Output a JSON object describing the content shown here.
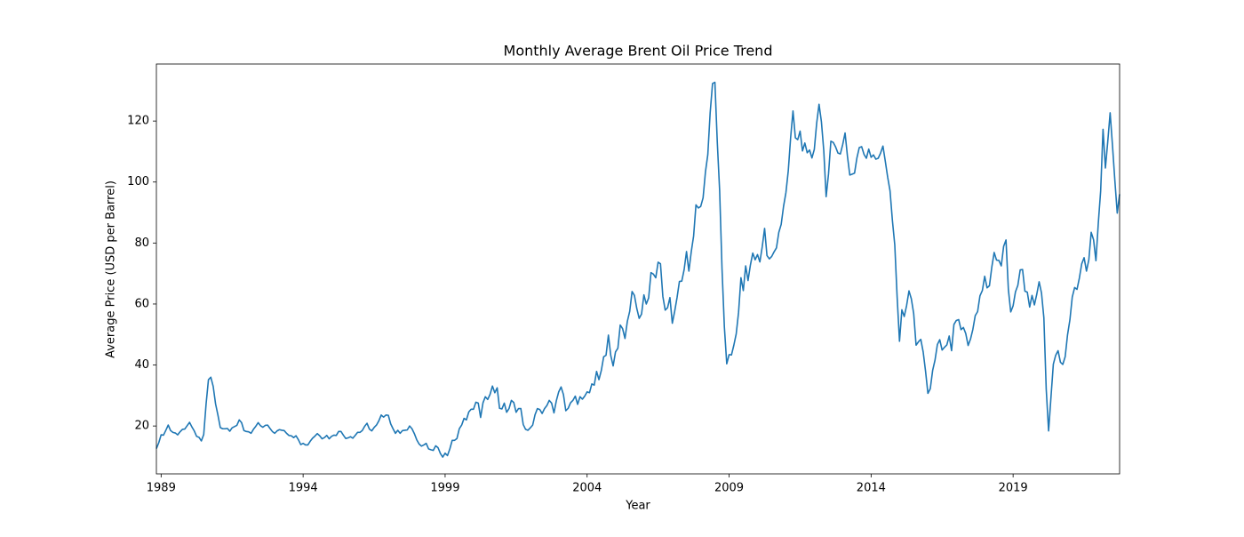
{
  "chart_data": {
    "type": "line",
    "title": "Monthly Average Brent Oil Price Trend",
    "x_label": "Year",
    "y_label": "Average Price (USD per Barrel)",
    "x": [
      "1988-11",
      "1988-12",
      "1989-01",
      "1989-02",
      "1989-03",
      "1989-04",
      "1989-05",
      "1989-06",
      "1989-07",
      "1989-08",
      "1989-09",
      "1989-10",
      "1989-11",
      "1989-12",
      "1990-01",
      "1990-02",
      "1990-03",
      "1990-04",
      "1990-05",
      "1990-06",
      "1990-07",
      "1990-08",
      "1990-09",
      "1990-10",
      "1990-11",
      "1990-12",
      "1991-01",
      "1991-02",
      "1991-03",
      "1991-04",
      "1991-05",
      "1991-06",
      "1991-07",
      "1991-08",
      "1991-09",
      "1991-10",
      "1991-11",
      "1991-12",
      "1992-01",
      "1992-02",
      "1992-03",
      "1992-04",
      "1992-05",
      "1992-06",
      "1992-07",
      "1992-08",
      "1992-09",
      "1992-10",
      "1992-11",
      "1992-12",
      "1993-01",
      "1993-02",
      "1993-03",
      "1993-04",
      "1993-05",
      "1993-06",
      "1993-07",
      "1993-08",
      "1993-09",
      "1993-10",
      "1993-11",
      "1993-12",
      "1994-01",
      "1994-02",
      "1994-03",
      "1994-04",
      "1994-05",
      "1994-06",
      "1994-07",
      "1994-08",
      "1994-09",
      "1994-10",
      "1994-11",
      "1994-12",
      "1995-01",
      "1995-02",
      "1995-03",
      "1995-04",
      "1995-05",
      "1995-06",
      "1995-07",
      "1995-08",
      "1995-09",
      "1995-10",
      "1995-11",
      "1995-12",
      "1996-01",
      "1996-02",
      "1996-03",
      "1996-04",
      "1996-05",
      "1996-06",
      "1996-07",
      "1996-08",
      "1996-09",
      "1996-10",
      "1996-11",
      "1996-12",
      "1997-01",
      "1997-02",
      "1997-03",
      "1997-04",
      "1997-05",
      "1997-06",
      "1997-07",
      "1997-08",
      "1997-09",
      "1997-10",
      "1997-11",
      "1997-12",
      "1998-01",
      "1998-02",
      "1998-03",
      "1998-04",
      "1998-05",
      "1998-06",
      "1998-07",
      "1998-08",
      "1998-09",
      "1998-10",
      "1998-11",
      "1998-12",
      "1999-01",
      "1999-02",
      "1999-03",
      "1999-04",
      "1999-05",
      "1999-06",
      "1999-07",
      "1999-08",
      "1999-09",
      "1999-10",
      "1999-11",
      "1999-12",
      "2000-01",
      "2000-02",
      "2000-03",
      "2000-04",
      "2000-05",
      "2000-06",
      "2000-07",
      "2000-08",
      "2000-09",
      "2000-10",
      "2000-11",
      "2000-12",
      "2001-01",
      "2001-02",
      "2001-03",
      "2001-04",
      "2001-05",
      "2001-06",
      "2001-07",
      "2001-08",
      "2001-09",
      "2001-10",
      "2001-11",
      "2001-12",
      "2002-01",
      "2002-02",
      "2002-03",
      "2002-04",
      "2002-05",
      "2002-06",
      "2002-07",
      "2002-08",
      "2002-09",
      "2002-10",
      "2002-11",
      "2002-12",
      "2003-01",
      "2003-02",
      "2003-03",
      "2003-04",
      "2003-05",
      "2003-06",
      "2003-07",
      "2003-08",
      "2003-09",
      "2003-10",
      "2003-11",
      "2003-12",
      "2004-01",
      "2004-02",
      "2004-03",
      "2004-04",
      "2004-05",
      "2004-06",
      "2004-07",
      "2004-08",
      "2004-09",
      "2004-10",
      "2004-11",
      "2004-12",
      "2005-01",
      "2005-02",
      "2005-03",
      "2005-04",
      "2005-05",
      "2005-06",
      "2005-07",
      "2005-08",
      "2005-09",
      "2005-10",
      "2005-11",
      "2005-12",
      "2006-01",
      "2006-02",
      "2006-03",
      "2006-04",
      "2006-05",
      "2006-06",
      "2006-07",
      "2006-08",
      "2006-09",
      "2006-10",
      "2006-11",
      "2006-12",
      "2007-01",
      "2007-02",
      "2007-03",
      "2007-04",
      "2007-05",
      "2007-06",
      "2007-07",
      "2007-08",
      "2007-09",
      "2007-10",
      "2007-11",
      "2007-12",
      "2008-01",
      "2008-02",
      "2008-03",
      "2008-04",
      "2008-05",
      "2008-06",
      "2008-07",
      "2008-08",
      "2008-09",
      "2008-10",
      "2008-11",
      "2008-12",
      "2009-01",
      "2009-02",
      "2009-03",
      "2009-04",
      "2009-05",
      "2009-06",
      "2009-07",
      "2009-08",
      "2009-09",
      "2009-10",
      "2009-11",
      "2009-12",
      "2010-01",
      "2010-02",
      "2010-03",
      "2010-04",
      "2010-05",
      "2010-06",
      "2010-07",
      "2010-08",
      "2010-09",
      "2010-10",
      "2010-11",
      "2010-12",
      "2011-01",
      "2011-02",
      "2011-03",
      "2011-04",
      "2011-05",
      "2011-06",
      "2011-07",
      "2011-08",
      "2011-09",
      "2011-10",
      "2011-11",
      "2011-12",
      "2012-01",
      "2012-02",
      "2012-03",
      "2012-04",
      "2012-05",
      "2012-06",
      "2012-07",
      "2012-08",
      "2012-09",
      "2012-10",
      "2012-11",
      "2012-12",
      "2013-01",
      "2013-02",
      "2013-03",
      "2013-04",
      "2013-05",
      "2013-06",
      "2013-07",
      "2013-08",
      "2013-09",
      "2013-10",
      "2013-11",
      "2013-12",
      "2014-01",
      "2014-02",
      "2014-03",
      "2014-04",
      "2014-05",
      "2014-06",
      "2014-07",
      "2014-08",
      "2014-09",
      "2014-10",
      "2014-11",
      "2014-12",
      "2015-01",
      "2015-02",
      "2015-03",
      "2015-04",
      "2015-05",
      "2015-06",
      "2015-07",
      "2015-08",
      "2015-09",
      "2015-10",
      "2015-11",
      "2015-12",
      "2016-01",
      "2016-02",
      "2016-03",
      "2016-04",
      "2016-05",
      "2016-06",
      "2016-07",
      "2016-08",
      "2016-09",
      "2016-10",
      "2016-11",
      "2016-12",
      "2017-01",
      "2017-02",
      "2017-03",
      "2017-04",
      "2017-05",
      "2017-06",
      "2017-07",
      "2017-08",
      "2017-09",
      "2017-10",
      "2017-11",
      "2017-12",
      "2018-01",
      "2018-02",
      "2018-03",
      "2018-04",
      "2018-05",
      "2018-06",
      "2018-07",
      "2018-08",
      "2018-09",
      "2018-10",
      "2018-11",
      "2018-12",
      "2019-01",
      "2019-02",
      "2019-03",
      "2019-04",
      "2019-05",
      "2019-06",
      "2019-07",
      "2019-08",
      "2019-09",
      "2019-10",
      "2019-11",
      "2019-12",
      "2020-01",
      "2020-02",
      "2020-03",
      "2020-04",
      "2020-05",
      "2020-06",
      "2020-07",
      "2020-08",
      "2020-09",
      "2020-10",
      "2020-11",
      "2020-12",
      "2021-01",
      "2021-02",
      "2021-03",
      "2021-04",
      "2021-05",
      "2021-06",
      "2021-07",
      "2021-08",
      "2021-09",
      "2021-10",
      "2021-11",
      "2021-12",
      "2022-01",
      "2022-02",
      "2022-03",
      "2022-04",
      "2022-05",
      "2022-06",
      "2022-07",
      "2022-08",
      "2022-09",
      "2022-10"
    ],
    "series": [
      {
        "name": "Brent",
        "color": "#1f77b4",
        "values": [
          12.6,
          14.5,
          17.1,
          17.0,
          18.6,
          20.3,
          18.5,
          17.9,
          17.7,
          17.1,
          18.1,
          18.9,
          19.0,
          20.1,
          21.2,
          19.7,
          18.4,
          16.6,
          16.3,
          15.1,
          17.2,
          27.2,
          35.2,
          36.0,
          33.0,
          27.3,
          23.6,
          19.5,
          19.1,
          19.1,
          19.2,
          18.3,
          19.4,
          19.8,
          20.2,
          22.0,
          21.1,
          18.5,
          18.2,
          18.1,
          17.6,
          18.9,
          19.9,
          21.1,
          20.1,
          19.6,
          20.2,
          20.3,
          19.2,
          18.2,
          17.6,
          18.4,
          18.8,
          18.6,
          18.5,
          17.6,
          16.9,
          16.8,
          16.2,
          16.8,
          15.5,
          13.9,
          14.3,
          13.8,
          13.8,
          15.0,
          16.0,
          16.7,
          17.5,
          16.8,
          15.8,
          16.2,
          16.9,
          15.8,
          16.6,
          17.0,
          16.9,
          18.2,
          18.2,
          17.0,
          15.9,
          16.1,
          16.5,
          16.0,
          16.9,
          17.9,
          17.9,
          18.5,
          19.9,
          20.9,
          19.0,
          18.4,
          19.5,
          20.3,
          21.7,
          23.6,
          22.9,
          23.6,
          23.5,
          20.7,
          19.1,
          17.6,
          18.6,
          17.6,
          18.5,
          18.6,
          18.7,
          20.0,
          19.1,
          17.5,
          15.5,
          14.1,
          13.4,
          13.8,
          14.3,
          12.5,
          12.2,
          12.0,
          13.5,
          12.9,
          11.0,
          9.8,
          11.1,
          10.3,
          12.5,
          15.3,
          15.3,
          15.9,
          19.1,
          20.3,
          22.5,
          22.0,
          24.6,
          25.5,
          25.5,
          27.8,
          27.5,
          22.8,
          27.6,
          29.6,
          28.7,
          30.4,
          33.1,
          30.9,
          32.5,
          25.8,
          25.6,
          27.5,
          24.5,
          25.7,
          28.4,
          27.7,
          24.5,
          25.7,
          25.7,
          20.5,
          18.9,
          18.6,
          19.4,
          20.3,
          23.7,
          25.7,
          25.4,
          24.1,
          25.7,
          26.7,
          28.4,
          27.5,
          24.3,
          28.3,
          31.2,
          32.8,
          30.3,
          25.0,
          25.8,
          27.6,
          28.4,
          29.8,
          27.1,
          29.6,
          28.8,
          29.8,
          31.2,
          30.9,
          33.8,
          33.4,
          37.9,
          35.2,
          38.2,
          42.7,
          43.2,
          49.8,
          43.1,
          39.7,
          44.3,
          45.5,
          53.1,
          51.9,
          48.7,
          54.3,
          57.6,
          64.1,
          62.8,
          58.5,
          55.3,
          56.7,
          63.0,
          60.0,
          62.0,
          70.3,
          69.8,
          68.6,
          73.7,
          73.2,
          62.5,
          58.0,
          58.8,
          62.1,
          53.7,
          57.6,
          62.1,
          67.4,
          67.5,
          71.3,
          77.2,
          70.8,
          77.1,
          82.3,
          92.5,
          91.5,
          92.0,
          94.8,
          103.3,
          109.0,
          122.8,
          132.3,
          132.7,
          113.2,
          97.2,
          71.6,
          52.5,
          40.4,
          43.4,
          43.3,
          46.5,
          50.2,
          57.3,
          68.6,
          64.4,
          72.5,
          67.7,
          72.8,
          76.7,
          74.5,
          76.2,
          73.8,
          78.8,
          84.8,
          75.9,
          74.8,
          75.6,
          77.1,
          78.4,
          83.5,
          86.1,
          92.0,
          96.5,
          103.7,
          114.6,
          123.3,
          114.5,
          113.9,
          116.7,
          110.2,
          112.8,
          109.6,
          110.5,
          107.9,
          110.7,
          119.3,
          125.5,
          119.8,
          110.3,
          95.2,
          102.6,
          113.4,
          113.0,
          111.5,
          109.5,
          109.2,
          112.3,
          116.1,
          108.5,
          102.3,
          102.6,
          102.9,
          107.9,
          111.3,
          111.6,
          109.1,
          107.8,
          110.8,
          108.1,
          108.9,
          107.5,
          107.8,
          109.5,
          111.8,
          106.8,
          101.6,
          97.1,
          87.4,
          79.4,
          62.3,
          47.8,
          58.1,
          55.9,
          59.5,
          64.3,
          61.7,
          56.8,
          46.5,
          47.6,
          48.4,
          44.3,
          38.0,
          30.7,
          32.2,
          38.2,
          41.6,
          46.7,
          48.3,
          44.9,
          45.8,
          46.6,
          49.5,
          44.7,
          53.3,
          54.6,
          54.9,
          51.6,
          52.3,
          50.3,
          46.4,
          48.5,
          51.7,
          56.2,
          57.5,
          62.7,
          64.4,
          69.1,
          65.3,
          66.0,
          72.1,
          76.9,
          74.4,
          74.3,
          72.5,
          78.9,
          81.0,
          64.8,
          57.4,
          59.4,
          64.0,
          66.1,
          71.2,
          71.3,
          64.2,
          63.9,
          59.0,
          62.8,
          59.7,
          63.2,
          67.3,
          63.6,
          55.5,
          32.0,
          18.4,
          29.4,
          40.3,
          43.2,
          44.7,
          40.9,
          40.2,
          42.7,
          49.9,
          54.8,
          62.3,
          65.4,
          64.8,
          68.5,
          73.2,
          75.2,
          70.8,
          74.5,
          83.5,
          81.1,
          74.2,
          86.5,
          97.1,
          117.3,
          104.6,
          113.3,
          122.7,
          111.9,
          100.5,
          89.8,
          96.0
        ]
      }
    ],
    "xlim": [
      "1988-11",
      "2022-10"
    ],
    "xticks": [
      {
        "value": "1989-01",
        "label": "1989"
      },
      {
        "value": "1994-01",
        "label": "1994"
      },
      {
        "value": "1999-01",
        "label": "1999"
      },
      {
        "value": "2004-01",
        "label": "2004"
      },
      {
        "value": "2009-01",
        "label": "2009"
      },
      {
        "value": "2014-01",
        "label": "2014"
      },
      {
        "value": "2019-01",
        "label": "2019"
      }
    ],
    "ylim": [
      4.3,
      138.7
    ],
    "yticks": [
      20,
      40,
      60,
      80,
      100,
      120
    ],
    "grid": false
  }
}
